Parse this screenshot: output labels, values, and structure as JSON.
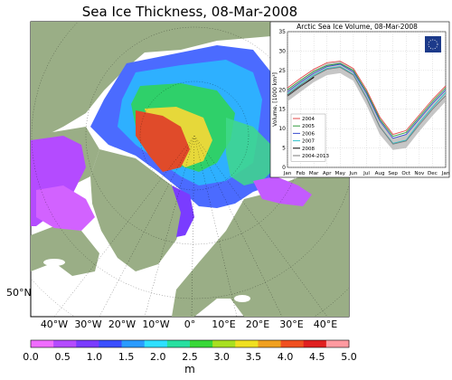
{
  "figure": {
    "title": "Sea Ice Thickness, 08-Mar-2008",
    "lat_label": "50°N",
    "lon_labels": [
      "40°W",
      "30°W",
      "20°W",
      "10°W",
      "0°",
      "10°E",
      "20°E",
      "30°E",
      "40°E"
    ],
    "colorbar": {
      "ticks": [
        "0.0",
        "0.5",
        "1.0",
        "1.5",
        "2.0",
        "2.5",
        "3.0",
        "3.5",
        "4.0",
        "4.5",
        "5.0"
      ],
      "unit": "m",
      "colors": [
        "#f06cff",
        "#b44bff",
        "#7a3cff",
        "#3b4fff",
        "#2a9bff",
        "#2fe0ff",
        "#28e0a0",
        "#38d838",
        "#a8e020",
        "#f0e020",
        "#f0a020",
        "#f05020",
        "#e02020",
        "#ff9aa0"
      ]
    },
    "map_colors": {
      "land": "#9aae86",
      "ocean": "#ffffff",
      "lake": "#ffffff"
    }
  },
  "chart_data": {
    "type": "line",
    "title": "Arctic Sea Ice Volume, 08-Mar-2008",
    "ylabel": "Volume, [1000 km³]",
    "ylim": [
      0,
      35
    ],
    "yticks": [
      "0",
      "5",
      "10",
      "15",
      "20",
      "25",
      "30",
      "35"
    ],
    "categories": [
      "Jan",
      "Feb",
      "Mar",
      "Apr",
      "May",
      "Jun",
      "Jul",
      "Aug",
      "Sep",
      "Oct",
      "Nov",
      "Dec",
      "Jan"
    ],
    "grid": true,
    "legend_position": "bottom-left",
    "series": [
      {
        "name": "2004",
        "color": "#e24a4a",
        "values": [
          20.5,
          23.0,
          25.3,
          27.0,
          27.4,
          25.5,
          20.0,
          13.0,
          8.5,
          9.5,
          13.5,
          17.5,
          21.0
        ]
      },
      {
        "name": "2005",
        "color": "#2f9a3c",
        "values": [
          20.0,
          22.5,
          24.8,
          26.3,
          26.8,
          25.0,
          19.5,
          12.5,
          8.0,
          9.0,
          13.0,
          17.0,
          20.5
        ]
      },
      {
        "name": "2006",
        "color": "#3a4fd0",
        "values": [
          19.5,
          22.0,
          24.3,
          26.0,
          26.6,
          24.6,
          19.0,
          12.0,
          7.5,
          8.5,
          12.5,
          16.5,
          20.0
        ]
      },
      {
        "name": "2007",
        "color": "#2bbfc8",
        "values": [
          19.0,
          21.5,
          23.8,
          25.5,
          26.0,
          24.0,
          18.0,
          10.5,
          6.2,
          7.0,
          11.5,
          15.5,
          19.3
        ]
      },
      {
        "name": "2008",
        "color": "#000000",
        "values": [
          18.5,
          21.0,
          23.3,
          null,
          null,
          null,
          null,
          null,
          null,
          null,
          null,
          null,
          null
        ]
      },
      {
        "name": "2004-2013",
        "color": "#7a7a7a",
        "values": [
          18.5,
          21.0,
          23.5,
          25.3,
          25.8,
          23.8,
          17.8,
          10.5,
          6.0,
          6.8,
          11.0,
          15.0,
          18.5
        ],
        "band_lo": [
          17.0,
          19.5,
          22.0,
          23.8,
          24.3,
          22.3,
          16.0,
          8.5,
          4.5,
          5.0,
          9.3,
          13.3,
          17.0
        ],
        "band_hi": [
          20.0,
          22.5,
          25.0,
          26.8,
          27.3,
          25.3,
          19.5,
          12.5,
          7.5,
          8.6,
          12.7,
          16.7,
          20.0
        ]
      }
    ]
  }
}
